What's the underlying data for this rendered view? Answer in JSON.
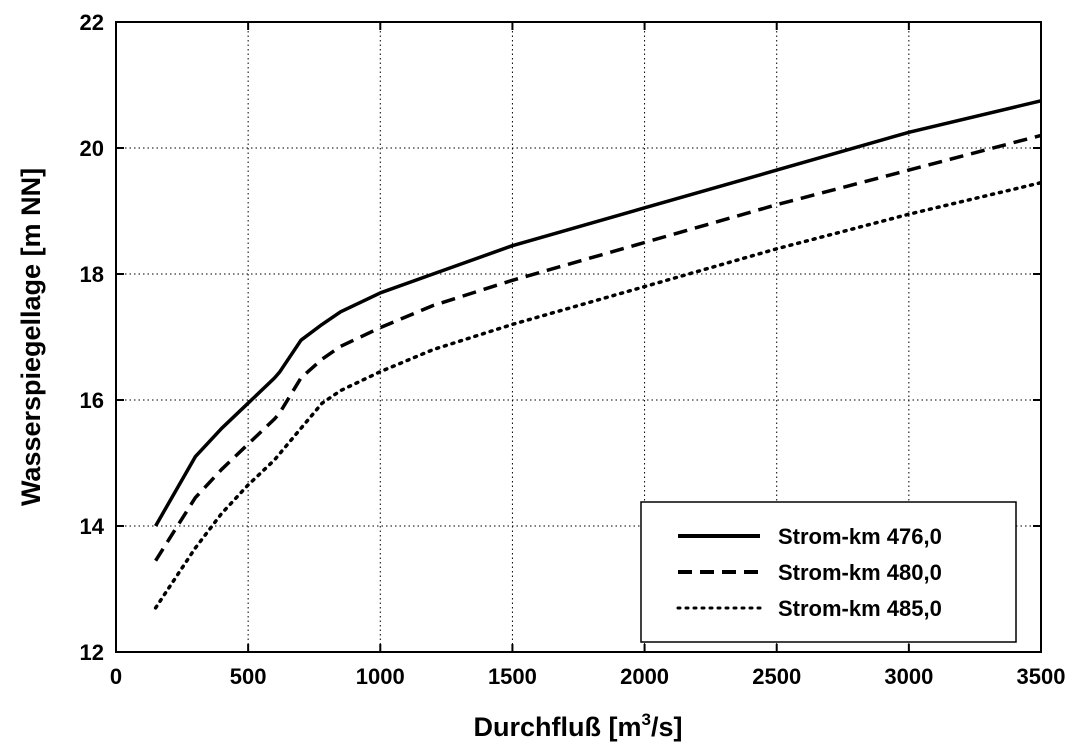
{
  "chart_data": {
    "type": "line",
    "title": "",
    "xlabel_main": "Durchfluß [m",
    "xlabel_sup": "3",
    "xlabel_tail": "/s]",
    "ylabel": "Wasserspiegellage [m NN]",
    "xlim": [
      0,
      3500
    ],
    "ylim": [
      12,
      22
    ],
    "xticks": [
      "0",
      "500",
      "1000",
      "1500",
      "2000",
      "2500",
      "3000",
      "3500"
    ],
    "yticks": [
      "12",
      "14",
      "16",
      "18",
      "20",
      "22"
    ],
    "grid": true,
    "legend_position": "bottom-right",
    "series": [
      {
        "name": "Strom-km 476,0",
        "style": "solid",
        "x": [
          150,
          300,
          400,
          500,
          600,
          620,
          700,
          780,
          850,
          1000,
          1200,
          1500,
          2000,
          2500,
          3000,
          3500
        ],
        "y": [
          14.0,
          15.1,
          15.55,
          15.95,
          16.35,
          16.45,
          16.95,
          17.2,
          17.4,
          17.7,
          18.0,
          18.45,
          19.05,
          19.65,
          20.25,
          20.75
        ]
      },
      {
        "name": "Strom-km 480,0",
        "style": "dashed",
        "x": [
          150,
          300,
          400,
          500,
          600,
          620,
          700,
          780,
          850,
          1000,
          1200,
          1500,
          2000,
          2500,
          3000,
          3500
        ],
        "y": [
          13.45,
          14.45,
          14.9,
          15.3,
          15.7,
          15.8,
          16.35,
          16.65,
          16.85,
          17.15,
          17.5,
          17.9,
          18.5,
          19.1,
          19.65,
          20.2
        ]
      },
      {
        "name": "Strom-km 485,0",
        "style": "dotted",
        "x": [
          150,
          300,
          400,
          500,
          600,
          700,
          780,
          850,
          1000,
          1200,
          1500,
          2000,
          2500,
          3000,
          3500
        ],
        "y": [
          12.7,
          13.65,
          14.2,
          14.65,
          15.05,
          15.55,
          15.95,
          16.15,
          16.45,
          16.8,
          17.2,
          17.8,
          18.4,
          18.95,
          19.45
        ]
      }
    ]
  }
}
